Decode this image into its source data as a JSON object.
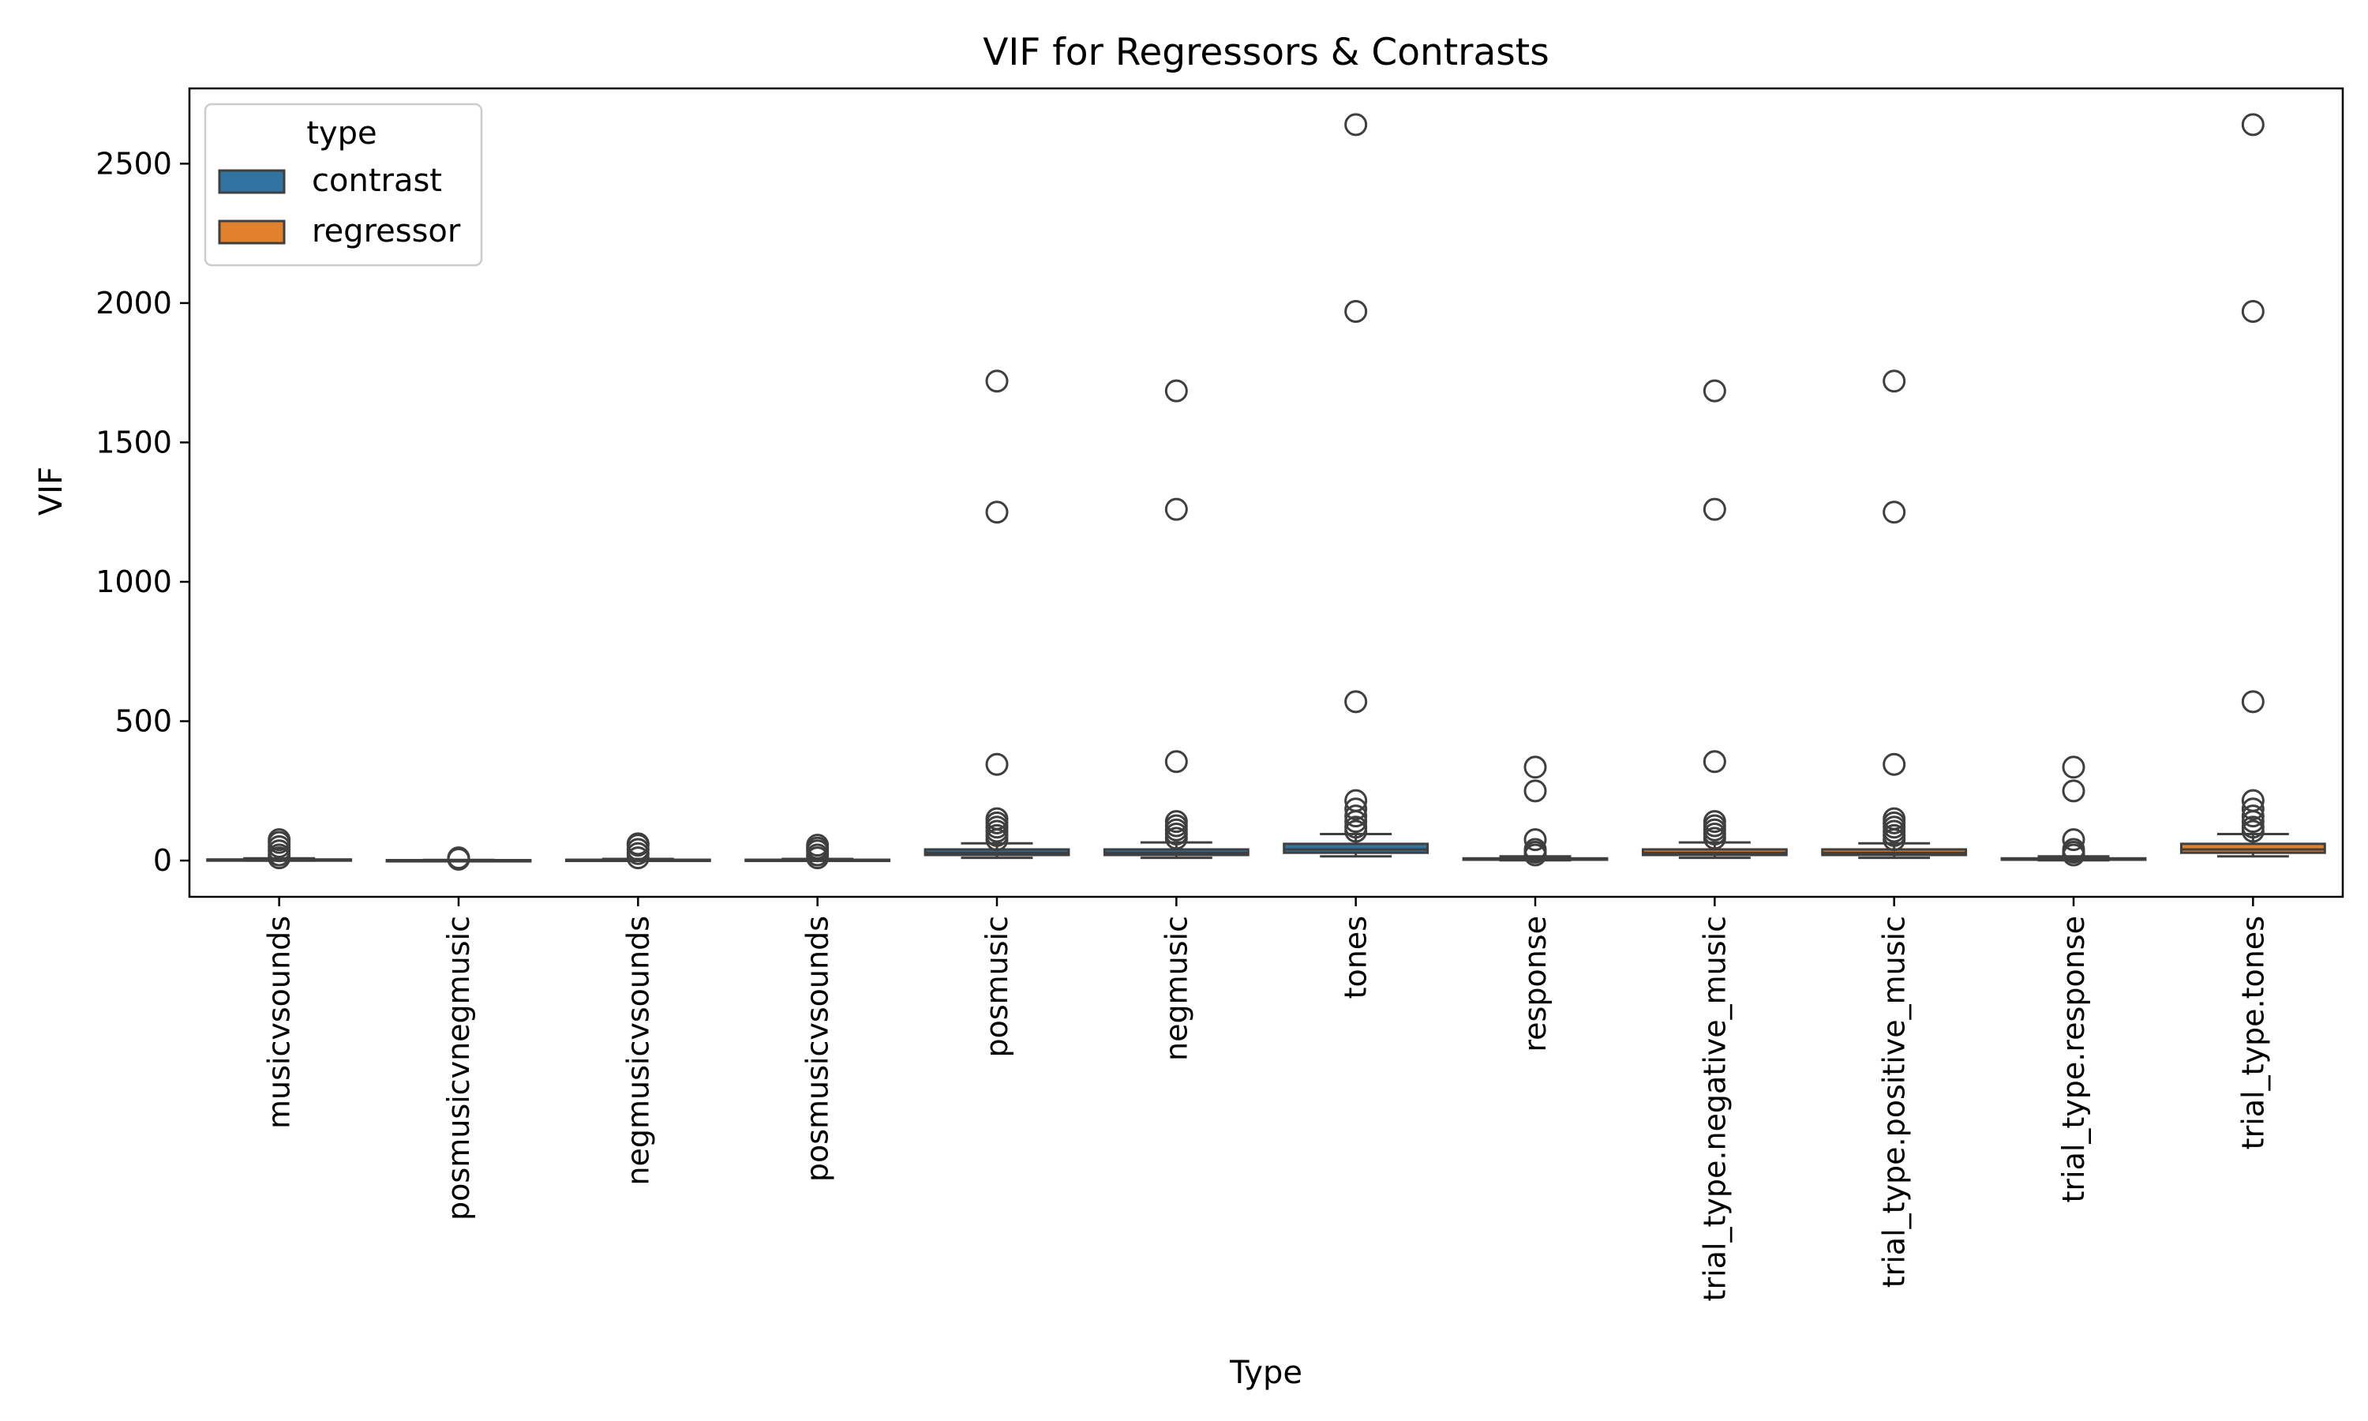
{
  "chart_data": {
    "type": "box",
    "title": "VIF for Regressors & Contrasts",
    "xlabel": "Type",
    "ylabel": "VIF",
    "ylim": [
      -130,
      2770
    ],
    "yticks": [
      0,
      500,
      1000,
      1500,
      2000,
      2500
    ],
    "grid": false,
    "legend": {
      "title": "type",
      "placement": "top-left",
      "entries": [
        {
          "label": "contrast",
          "color": "#3274a1"
        },
        {
          "label": "regressor",
          "color": "#e1812c"
        }
      ]
    },
    "categories": [
      "musicvsounds",
      "posmusicvnegmusic",
      "negmusicvsounds",
      "posmusicvsounds",
      "posmusic",
      "negmusic",
      "tones",
      "response",
      "trial_type.negative_music",
      "trial_type.positive_music",
      "trial_type.response",
      "trial_type.tones"
    ],
    "boxes": [
      {
        "category": "musicvsounds",
        "series": "contrast",
        "q1": 1,
        "median": 2,
        "q3": 4,
        "whisker_low": 0,
        "whisker_high": 8,
        "outliers": [
          10,
          20,
          35,
          50,
          65,
          75
        ]
      },
      {
        "category": "posmusicvnegmusic",
        "series": "contrast",
        "q1": 0.5,
        "median": 1,
        "q3": 1.5,
        "whisker_low": 0.2,
        "whisker_high": 2.5,
        "outliers": [
          5,
          8,
          10
        ]
      },
      {
        "category": "negmusicvsounds",
        "series": "contrast",
        "q1": 1,
        "median": 2,
        "q3": 3,
        "whisker_low": 0,
        "whisker_high": 6,
        "outliers": [
          10,
          25,
          40,
          55,
          60
        ]
      },
      {
        "category": "posmusicvsounds",
        "series": "contrast",
        "q1": 1,
        "median": 2,
        "q3": 3,
        "whisker_low": 0,
        "whisker_high": 6,
        "outliers": [
          10,
          20,
          35,
          45,
          55
        ]
      },
      {
        "category": "posmusic",
        "series": "contrast",
        "q1": 20,
        "median": 28,
        "q3": 40,
        "whisker_low": 10,
        "whisker_high": 62,
        "outliers": [
          75,
          90,
          105,
          120,
          135,
          150,
          345,
          1250,
          1720
        ]
      },
      {
        "category": "negmusic",
        "series": "contrast",
        "q1": 20,
        "median": 28,
        "q3": 40,
        "whisker_low": 10,
        "whisker_high": 65,
        "outliers": [
          80,
          95,
          110,
          125,
          140,
          355,
          1260,
          1685
        ]
      },
      {
        "category": "tones",
        "series": "contrast",
        "q1": 28,
        "median": 40,
        "q3": 60,
        "whisker_low": 15,
        "whisker_high": 95,
        "outliers": [
          105,
          120,
          140,
          160,
          185,
          215,
          570,
          1970,
          2640
        ]
      },
      {
        "category": "response",
        "series": "contrast",
        "q1": 3,
        "median": 5,
        "q3": 8,
        "whisker_low": 1,
        "whisker_high": 15,
        "outliers": [
          20,
          30,
          40,
          75,
          250,
          335
        ]
      },
      {
        "category": "trial_type.negative_music",
        "series": "regressor",
        "q1": 20,
        "median": 28,
        "q3": 40,
        "whisker_low": 10,
        "whisker_high": 65,
        "outliers": [
          80,
          95,
          110,
          125,
          140,
          355,
          1260,
          1685
        ]
      },
      {
        "category": "trial_type.positive_music",
        "series": "regressor",
        "q1": 20,
        "median": 28,
        "q3": 40,
        "whisker_low": 10,
        "whisker_high": 62,
        "outliers": [
          75,
          90,
          105,
          120,
          135,
          150,
          345,
          1250,
          1720
        ]
      },
      {
        "category": "trial_type.response",
        "series": "regressor",
        "q1": 3,
        "median": 5,
        "q3": 8,
        "whisker_low": 1,
        "whisker_high": 15,
        "outliers": [
          20,
          30,
          40,
          75,
          250,
          335
        ]
      },
      {
        "category": "trial_type.tones",
        "series": "regressor",
        "q1": 28,
        "median": 40,
        "q3": 60,
        "whisker_low": 15,
        "whisker_high": 95,
        "outliers": [
          105,
          120,
          140,
          160,
          185,
          215,
          570,
          1970,
          2640
        ]
      }
    ]
  }
}
